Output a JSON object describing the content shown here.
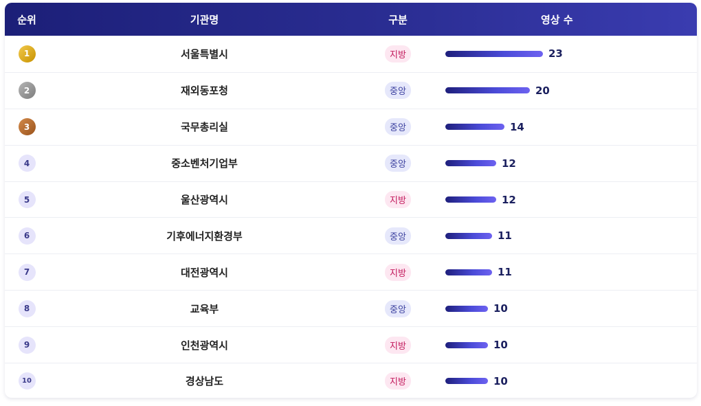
{
  "headers": {
    "rank": "순위",
    "name": "기관명",
    "type": "구분",
    "count": "영상 수"
  },
  "rows": [
    {
      "rank": "1",
      "name": "서울특별시",
      "type": "지방",
      "count": 23
    },
    {
      "rank": "2",
      "name": "재외동포청",
      "type": "중앙",
      "count": 20
    },
    {
      "rank": "3",
      "name": "국무총리실",
      "type": "중앙",
      "count": 14
    },
    {
      "rank": "4",
      "name": "중소벤처기업부",
      "type": "중앙",
      "count": 12
    },
    {
      "rank": "5",
      "name": "울산광역시",
      "type": "지방",
      "count": 12
    },
    {
      "rank": "6",
      "name": "기후에너지환경부",
      "type": "중앙",
      "count": 11
    },
    {
      "rank": "7",
      "name": "대전광역시",
      "type": "지방",
      "count": 11
    },
    {
      "rank": "8",
      "name": "교육부",
      "type": "중앙",
      "count": 10
    },
    {
      "rank": "9",
      "name": "인천광역시",
      "type": "지방",
      "count": 10
    },
    {
      "rank": "10",
      "name": "경상남도",
      "type": "지방",
      "count": 10
    }
  ],
  "colors": {
    "header_start": "#1c1f78",
    "header_end": "#3a3cb0",
    "bar_start": "#1e1f7c",
    "bar_end": "#6d62f0",
    "local_tag_bg": "#fde7f1",
    "central_tag_bg": "#e6e8fb"
  }
}
